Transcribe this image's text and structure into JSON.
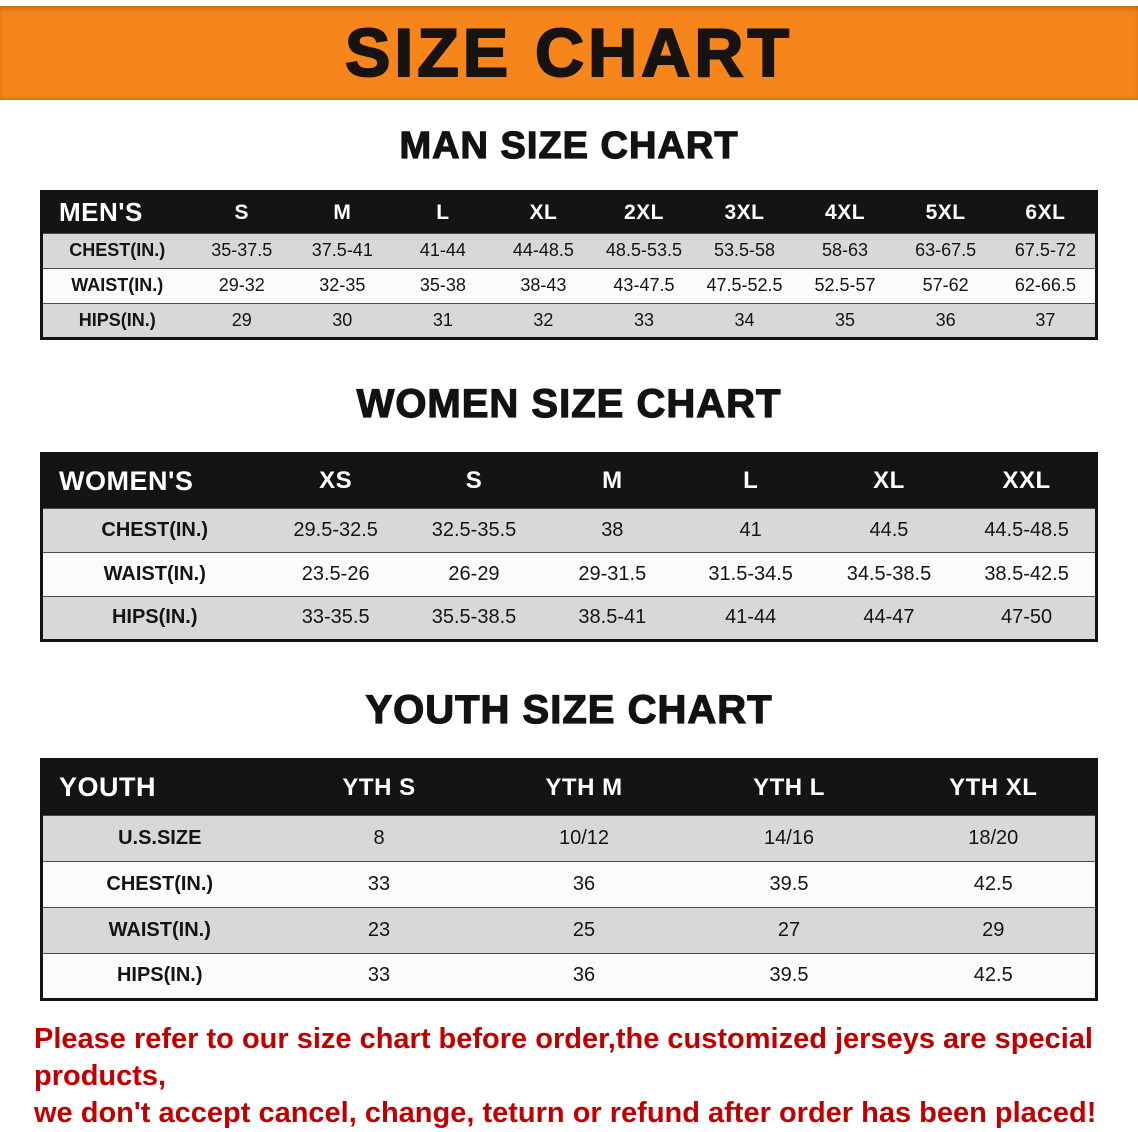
{
  "banner": {
    "title": "SIZE CHART",
    "bg_color": "#F6861B",
    "text_color": "#161310"
  },
  "colors": {
    "header_row_bg": "#141414",
    "stripe_row_bg": "#D8D8D8",
    "disclaimer_text": "#C00000"
  },
  "sections": [
    {
      "heading": "MAN SIZE CHART",
      "table": {
        "name": "mens-size-table",
        "header": [
          "MEN'S",
          "S",
          "M",
          "L",
          "XL",
          "2XL",
          "3XL",
          "4XL",
          "5XL",
          "6XL"
        ],
        "rows": [
          {
            "label": "CHEST(IN.)",
            "values": [
              "35-37.5",
              "37.5-41",
              "41-44",
              "44-48.5",
              "48.5-53.5",
              "53.5-58",
              "58-63",
              "63-67.5",
              "67.5-72"
            ]
          },
          {
            "label": "WAIST(IN.)",
            "values": [
              "29-32",
              "32-35",
              "35-38",
              "38-43",
              "43-47.5",
              "47.5-52.5",
              "52.5-57",
              "57-62",
              "62-66.5"
            ]
          },
          {
            "label": "HIPS(IN.)",
            "values": [
              "29",
              "30",
              "31",
              "32",
              "33",
              "34",
              "35",
              "36",
              "37"
            ]
          }
        ]
      }
    },
    {
      "heading": "WOMEN SIZE CHART",
      "table": {
        "name": "womens-size-table",
        "header": [
          "WOMEN'S",
          "XS",
          "S",
          "M",
          "L",
          "XL",
          "XXL"
        ],
        "rows": [
          {
            "label": "CHEST(IN.)",
            "values": [
              "29.5-32.5",
              "32.5-35.5",
              "38",
              "41",
              "44.5",
              "44.5-48.5"
            ]
          },
          {
            "label": "WAIST(IN.)",
            "values": [
              "23.5-26",
              "26-29",
              "29-31.5",
              "31.5-34.5",
              "34.5-38.5",
              "38.5-42.5"
            ]
          },
          {
            "label": "HIPS(IN.)",
            "values": [
              "33-35.5",
              "35.5-38.5",
              "38.5-41",
              "41-44",
              "44-47",
              "47-50"
            ]
          }
        ]
      }
    },
    {
      "heading": "YOUTH SIZE CHART",
      "table": {
        "name": "youth-size-table",
        "header": [
          "YOUTH",
          "YTH S",
          "YTH M",
          "YTH L",
          "YTH XL"
        ],
        "rows": [
          {
            "label": "U.S.SIZE",
            "values": [
              "8",
              "10/12",
              "14/16",
              "18/20"
            ]
          },
          {
            "label": "CHEST(IN.)",
            "values": [
              "33",
              "36",
              "39.5",
              "42.5"
            ]
          },
          {
            "label": "WAIST(IN.)",
            "values": [
              "23",
              "25",
              "27",
              "29"
            ]
          },
          {
            "label": "HIPS(IN.)",
            "values": [
              "33",
              "36",
              "39.5",
              "42.5"
            ]
          }
        ]
      }
    }
  ],
  "footer": {
    "line1": "Please refer to our size chart before order,the customized jerseys are special products,",
    "line2": "we don't accept cancel, change, teturn or refund after order has been placed!"
  }
}
